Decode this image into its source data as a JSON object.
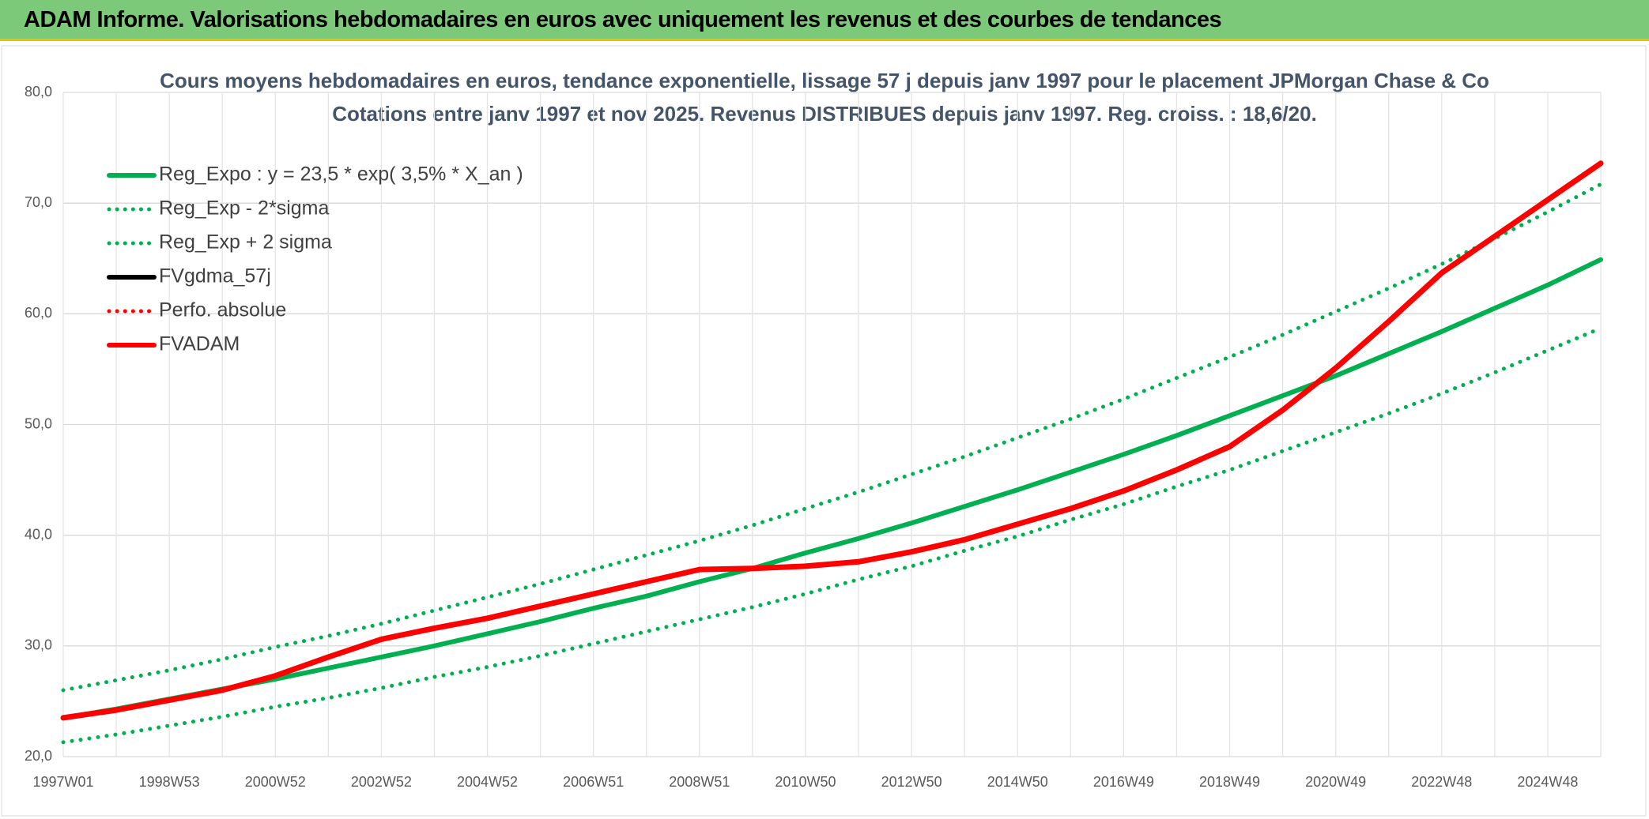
{
  "header": {
    "title": "ADAM Informe. Valorisations hebdomadaires en euros avec uniquement les revenus et des courbes de tendances"
  },
  "chart_data": {
    "type": "line",
    "title": "Cours moyens hebdomadaires en euros, tendance exponentielle, lissage 57 j depuis janv 1997 pour le placement JPMorgan Chase & Co",
    "subtitle": "Cotations entre janv 1997 et nov 2025. Revenus DISTRIBUES depuis janv 1997. Reg. croiss. : 18,6/20.",
    "categories": [
      "1997W01",
      null,
      "1998W53",
      null,
      "2000W52",
      null,
      "2002W52",
      null,
      "2004W52",
      null,
      "2006W51",
      null,
      "2008W51",
      null,
      "2010W50",
      null,
      "2012W50",
      null,
      "2014W50",
      null,
      "2016W49",
      null,
      "2018W49",
      null,
      "2020W49",
      null,
      "2022W48",
      null,
      "2024W48",
      null
    ],
    "series": [
      {
        "name": "Reg_Expo : y = 23,5 * exp( 3,5% *  X_an )",
        "color": "#00b050",
        "style": "solid",
        "values": [
          23.5,
          24.3,
          25.2,
          26.1,
          27.0,
          28.0,
          29.0,
          30.0,
          31.1,
          32.2,
          33.4,
          34.5,
          35.8,
          37.0,
          38.4,
          39.7,
          41.1,
          42.6,
          44.1,
          45.7,
          47.3,
          49.0,
          50.8,
          52.6,
          54.4,
          56.4,
          58.4,
          60.5,
          62.6,
          64.9
        ]
      },
      {
        "name": "Reg_Exp - 2*sigma",
        "color": "#00b050",
        "style": "dotted",
        "values": [
          21.3,
          22.0,
          22.8,
          23.6,
          24.5,
          25.3,
          26.2,
          27.2,
          28.1,
          29.1,
          30.2,
          31.3,
          32.4,
          33.5,
          34.7,
          36.0,
          37.2,
          38.6,
          39.9,
          41.4,
          42.8,
          44.4,
          45.9,
          47.6,
          49.3,
          51.0,
          52.8,
          54.7,
          56.7,
          58.7
        ]
      },
      {
        "name": "Reg_Exp + 2 sigma",
        "color": "#00b050",
        "style": "dotted",
        "values": [
          26.0,
          26.9,
          27.8,
          28.8,
          29.9,
          30.9,
          32.0,
          33.2,
          34.4,
          35.6,
          36.9,
          38.2,
          39.5,
          40.9,
          42.4,
          43.9,
          45.5,
          47.1,
          48.8,
          50.5,
          52.3,
          54.2,
          56.1,
          58.1,
          60.2,
          62.3,
          64.5,
          66.8,
          69.2,
          71.7
        ]
      },
      {
        "name": "FVgdma_57j",
        "color": "#000000",
        "style": "solid",
        "values": [
          23.5,
          24.2,
          25.1,
          26.0,
          27.3,
          29.0,
          30.6,
          31.6,
          32.5,
          33.6,
          34.7,
          35.8,
          36.9,
          37.0,
          37.2,
          37.6,
          38.5,
          39.6,
          41.0,
          42.4,
          44.0,
          45.9,
          48.0,
          51.3,
          55.1,
          59.3,
          63.7,
          67.0,
          70.3,
          73.6
        ]
      },
      {
        "name": "Perfo. absolue",
        "color": "#ff0000",
        "style": "dotted",
        "values": [
          23.5,
          24.2,
          25.1,
          26.0,
          27.3,
          29.0,
          30.6,
          31.6,
          32.5,
          33.6,
          34.7,
          35.8,
          36.9,
          37.0,
          37.2,
          37.6,
          38.5,
          39.6,
          41.0,
          42.4,
          44.0,
          45.9,
          48.0,
          51.3,
          55.1,
          59.3,
          63.7,
          67.0,
          70.3,
          73.6
        ]
      },
      {
        "name": "FVADAM",
        "color": "#ff0000",
        "style": "solid",
        "values": [
          23.5,
          24.2,
          25.1,
          26.0,
          27.3,
          29.0,
          30.6,
          31.6,
          32.5,
          33.6,
          34.7,
          35.8,
          36.9,
          37.0,
          37.2,
          37.6,
          38.5,
          39.6,
          41.0,
          42.4,
          44.0,
          45.9,
          48.0,
          51.3,
          55.1,
          59.3,
          63.7,
          67.0,
          70.3,
          73.6
        ]
      }
    ],
    "ylim": [
      20,
      80
    ],
    "yticks": [
      {
        "value": 20,
        "label": "20,0"
      },
      {
        "value": 30,
        "label": "30,0"
      },
      {
        "value": 40,
        "label": "40,0"
      },
      {
        "value": 50,
        "label": "50,0"
      },
      {
        "value": 60,
        "label": "60,0"
      },
      {
        "value": 70,
        "label": "70,0"
      },
      {
        "value": 80,
        "label": "80,0"
      }
    ],
    "grid": true,
    "legend": "top-left"
  }
}
